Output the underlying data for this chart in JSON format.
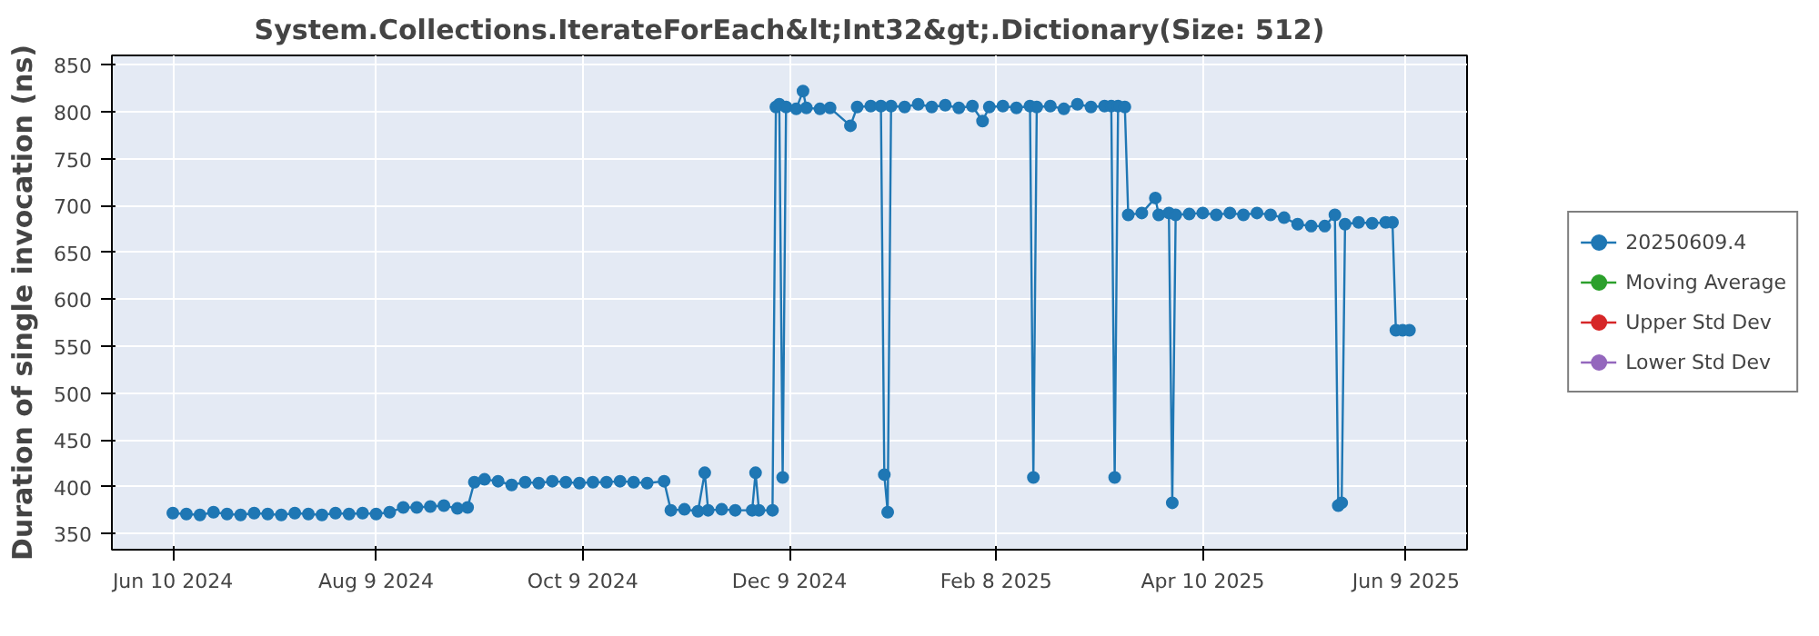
{
  "chart_data": {
    "type": "line",
    "title": "System.Collections.IterateForEach&lt;Int32&gt;.Dictionary(Size: 512)",
    "ylabel": "Duration of single invocation (ns)",
    "x": [
      "2024-06-10",
      "2024-06-14",
      "2024-06-18",
      "2024-06-22",
      "2024-06-26",
      "2024-06-30",
      "2024-07-04",
      "2024-07-08",
      "2024-07-12",
      "2024-07-16",
      "2024-07-20",
      "2024-07-24",
      "2024-07-28",
      "2024-08-01",
      "2024-08-05",
      "2024-08-09",
      "2024-08-13",
      "2024-08-17",
      "2024-08-21",
      "2024-08-25",
      "2024-08-29",
      "2024-09-02",
      "2024-09-05",
      "2024-09-07",
      "2024-09-10",
      "2024-09-14",
      "2024-09-18",
      "2024-09-22",
      "2024-09-26",
      "2024-09-30",
      "2024-10-04",
      "2024-10-08",
      "2024-10-12",
      "2024-10-16",
      "2024-10-20",
      "2024-10-24",
      "2024-10-28",
      "2024-11-02",
      "2024-11-04",
      "2024-11-08",
      "2024-11-12",
      "2024-11-14",
      "2024-11-15",
      "2024-11-19",
      "2024-11-23",
      "2024-11-28",
      "2024-11-29",
      "2024-11-30",
      "2024-12-04",
      "2024-12-05",
      "2024-12-06",
      "2024-12-07",
      "2024-12-08",
      "2024-12-11",
      "2024-12-13",
      "2024-12-14",
      "2024-12-18",
      "2024-12-21",
      "2024-12-27",
      "2024-12-29",
      "2025-01-02",
      "2025-01-05",
      "2025-01-06",
      "2025-01-07",
      "2025-01-08",
      "2025-01-12",
      "2025-01-16",
      "2025-01-20",
      "2025-01-24",
      "2025-01-28",
      "2025-02-01",
      "2025-02-04",
      "2025-02-06",
      "2025-02-10",
      "2025-02-14",
      "2025-02-18",
      "2025-02-19",
      "2025-02-20",
      "2025-02-24",
      "2025-02-28",
      "2025-03-04",
      "2025-03-08",
      "2025-03-12",
      "2025-03-14",
      "2025-03-15",
      "2025-03-16",
      "2025-03-18",
      "2025-03-19",
      "2025-03-23",
      "2025-03-27",
      "2025-03-28",
      "2025-03-31",
      "2025-04-01",
      "2025-04-02",
      "2025-04-06",
      "2025-04-10",
      "2025-04-14",
      "2025-04-18",
      "2025-04-22",
      "2025-04-26",
      "2025-04-30",
      "2025-05-04",
      "2025-05-08",
      "2025-05-12",
      "2025-05-16",
      "2025-05-19",
      "2025-05-20",
      "2025-05-21",
      "2025-05-22",
      "2025-05-26",
      "2025-05-30",
      "2025-06-03",
      "2025-06-05",
      "2025-06-06",
      "2025-06-08",
      "2025-06-10"
    ],
    "series": [
      {
        "name": "20250609.4",
        "color": "#1f77b4",
        "values": [
          372,
          371,
          370,
          373,
          371,
          370,
          372,
          371,
          370,
          372,
          371,
          370,
          372,
          371,
          372,
          371,
          373,
          378,
          378,
          379,
          380,
          377,
          378,
          405,
          408,
          406,
          402,
          405,
          404,
          406,
          405,
          404,
          405,
          405,
          406,
          405,
          404,
          406,
          375,
          376,
          374,
          415,
          375,
          376,
          375,
          375,
          415,
          375,
          375,
          805,
          808,
          410,
          805,
          803,
          822,
          804,
          803,
          804,
          785,
          805,
          806,
          806,
          413,
          373,
          806,
          805,
          808,
          805,
          807,
          804,
          806,
          790,
          805,
          806,
          804,
          806,
          410,
          805,
          806,
          803,
          808,
          805,
          806,
          806,
          410,
          806,
          805,
          690,
          692,
          708,
          690,
          692,
          383,
          690,
          691,
          692,
          690,
          692,
          690,
          692,
          690,
          687,
          680,
          678,
          678,
          690,
          380,
          383,
          680,
          682,
          681,
          682,
          682,
          567,
          567,
          567
        ]
      },
      {
        "name": "Moving Average",
        "color": "#2ca02c",
        "values": [
          null,
          null,
          null,
          null,
          null,
          null,
          null,
          null,
          null,
          null,
          null,
          null,
          null,
          null,
          null,
          null,
          null,
          null,
          null,
          null,
          null,
          null,
          null,
          null,
          null,
          null,
          null,
          null,
          null,
          null,
          null,
          null,
          null,
          null,
          null,
          null,
          null,
          null,
          null,
          null,
          null,
          null,
          null,
          null,
          null,
          null,
          null,
          null,
          null,
          null,
          null,
          null,
          null,
          null,
          null,
          null,
          null,
          null,
          null,
          null,
          null,
          null,
          null,
          null,
          null,
          null,
          null,
          null,
          null,
          null,
          null,
          null,
          null,
          null,
          null,
          null,
          null,
          null,
          null,
          null,
          null,
          null,
          null,
          null,
          null,
          null,
          null,
          null,
          null,
          null,
          null,
          null,
          null,
          null,
          null,
          null,
          null,
          null,
          null,
          null,
          null,
          null,
          null,
          null,
          null,
          null,
          null,
          null,
          null,
          null,
          null,
          null,
          null,
          null,
          null,
          null
        ]
      },
      {
        "name": "Upper Std Dev",
        "color": "#d62728",
        "values": [
          null,
          null,
          null,
          null,
          null,
          null,
          null,
          null,
          null,
          null,
          null,
          null,
          null,
          null,
          null,
          null,
          null,
          null,
          null,
          null,
          null,
          null,
          null,
          null,
          null,
          null,
          null,
          null,
          null,
          null,
          null,
          null,
          null,
          null,
          null,
          null,
          null,
          null,
          null,
          null,
          null,
          null,
          null,
          null,
          null,
          null,
          null,
          null,
          null,
          null,
          null,
          null,
          null,
          null,
          null,
          null,
          null,
          null,
          null,
          null,
          null,
          null,
          null,
          null,
          null,
          null,
          null,
          null,
          null,
          null,
          null,
          null,
          null,
          null,
          null,
          null,
          null,
          null,
          null,
          null,
          null,
          null,
          null,
          null,
          null,
          null,
          null,
          null,
          null,
          null,
          null,
          null,
          null,
          null,
          null,
          null,
          null,
          null,
          null,
          null,
          null,
          null,
          null,
          null,
          null,
          null,
          null,
          null,
          null,
          null,
          null,
          null,
          null,
          null,
          null,
          null
        ]
      },
      {
        "name": "Lower Std Dev",
        "color": "#9467bd",
        "values": [
          null,
          null,
          null,
          null,
          null,
          null,
          null,
          null,
          null,
          null,
          null,
          null,
          null,
          null,
          null,
          null,
          null,
          null,
          null,
          null,
          null,
          null,
          null,
          null,
          null,
          null,
          null,
          null,
          null,
          null,
          null,
          null,
          null,
          null,
          null,
          null,
          null,
          null,
          null,
          null,
          null,
          null,
          null,
          null,
          null,
          null,
          null,
          null,
          null,
          null,
          null,
          null,
          null,
          null,
          null,
          null,
          null,
          null,
          null,
          null,
          null,
          null,
          null,
          null,
          null,
          null,
          null,
          null,
          null,
          null,
          null,
          null,
          null,
          null,
          null,
          null,
          null,
          null,
          null,
          null,
          null,
          null,
          null,
          null,
          null,
          null,
          null,
          null,
          null,
          null,
          null,
          null,
          null,
          null,
          null,
          null,
          null,
          null,
          null,
          null,
          null,
          null,
          null,
          null,
          null,
          null,
          null,
          null,
          null,
          null,
          null,
          null,
          null,
          null,
          null,
          null
        ]
      }
    ],
    "xlim": [
      "2024-05-23",
      "2025-06-27"
    ],
    "ylim": [
      333,
      860
    ],
    "xticks": [
      {
        "value": "2024-06-10",
        "label": "Jun 10 2024"
      },
      {
        "value": "2024-08-09",
        "label": "Aug 9 2024"
      },
      {
        "value": "2024-10-09",
        "label": "Oct 9 2024"
      },
      {
        "value": "2024-12-09",
        "label": "Dec 9 2024"
      },
      {
        "value": "2025-02-08",
        "label": "Feb 8 2025"
      },
      {
        "value": "2025-04-10",
        "label": "Apr 10 2025"
      },
      {
        "value": "2025-06-09",
        "label": "Jun 9 2025"
      }
    ],
    "yticks": [
      350,
      400,
      450,
      500,
      550,
      600,
      650,
      700,
      750,
      800,
      850
    ],
    "grid": true,
    "legend": "right",
    "marker": "circle",
    "line_style": "solid"
  }
}
